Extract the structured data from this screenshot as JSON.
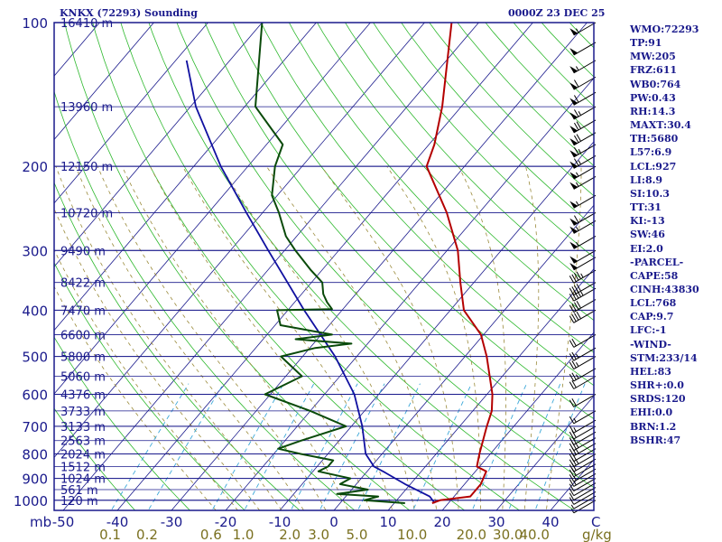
{
  "header": {
    "station_title": "KNKX (72293) Sounding",
    "datetime": "0000Z 23 DEC 25"
  },
  "indices": [
    "WMO:72293",
    "TP:91",
    "MW:205",
    "FRZ:611",
    "WB0:764",
    "PW:0.43",
    "RH:14.3",
    "MAXT:30.4",
    "TH:5680",
    "L57:6.9",
    "LCL:927",
    "LI:8.9",
    "SI:10.3",
    "TT:31",
    "KI:-13",
    "SW:46",
    "EI:2.0",
    "-PARCEL-",
    "CAPE:58",
    "CINH:43830",
    "LCL:768",
    "CAP:9.7",
    "LFC:-1",
    "-WIND-",
    "STM:233/14",
    "HEL:83",
    "SHR+:0.0",
    "SRDS:120",
    "EHI:0.0",
    "BRN:1.2",
    "BSHR:47"
  ],
  "colors": {
    "frame": "#1a1a8c",
    "isobars": "#1a1a8c",
    "isotherms": "#1a1a8c",
    "dry_adiabats": "#2db82d",
    "moist_adiabats": "#9a8a3a",
    "mixing_ratio": "#3aa7d8",
    "temperature": "#b40000",
    "dewpoint": "#0a4a0a",
    "parcel": "#1010a0",
    "mixing_ratio_labels": "#7a7020",
    "barbs": "#000000"
  },
  "chart_data": {
    "type": "skew-t",
    "ylabel": "mb",
    "xlabel": "C",
    "mixing_ratio_unit": "g/kg",
    "pressure_ticks": [
      "100",
      "200",
      "300",
      "400",
      "500",
      "600",
      "700",
      "800",
      "900",
      "1000"
    ],
    "temperature_ticks": [
      "-50",
      "-40",
      "-30",
      "-20",
      "-10",
      "0",
      "10",
      "20",
      "30",
      "40"
    ],
    "mixing_ratio_labels": [
      "0.1",
      "0.2",
      "0.6",
      "1.0",
      "2.0",
      "3.0",
      "5.0",
      "10.0",
      "20.0",
      "30.0",
      "40.0"
    ],
    "height_labels": [
      {
        "p": 100,
        "h": "16410 m"
      },
      {
        "p": 150,
        "h": "13960 m"
      },
      {
        "p": 200,
        "h": "12150 m"
      },
      {
        "p": 250,
        "h": "10720 m"
      },
      {
        "p": 300,
        "h": "9490 m"
      },
      {
        "p": 350,
        "h": "8422 m"
      },
      {
        "p": 400,
        "h": "7470 m"
      },
      {
        "p": 450,
        "h": "6600 m"
      },
      {
        "p": 500,
        "h": "5800 m"
      },
      {
        "p": 550,
        "h": "5060 m"
      },
      {
        "p": 600,
        "h": "4376 m"
      },
      {
        "p": 650,
        "h": "3733 m"
      },
      {
        "p": 700,
        "h": "3133 m"
      },
      {
        "p": 750,
        "h": "2563 m"
      },
      {
        "p": 800,
        "h": "2024 m"
      },
      {
        "p": 850,
        "h": "1512 m"
      },
      {
        "p": 900,
        "h": "1024 m"
      },
      {
        "p": 950,
        "h": "561 m"
      },
      {
        "p": 1000,
        "h": "120 m"
      }
    ],
    "temperature": [
      [
        1014,
        17
      ],
      [
        1000,
        18
      ],
      [
        982,
        23
      ],
      [
        925,
        23
      ],
      [
        870,
        22
      ],
      [
        850,
        19.5
      ],
      [
        800,
        18
      ],
      [
        700,
        15
      ],
      [
        650,
        13.5
      ],
      [
        600,
        11
      ],
      [
        500,
        4
      ],
      [
        450,
        -0.5
      ],
      [
        400,
        -7.5
      ],
      [
        350,
        -12.5
      ],
      [
        300,
        -18
      ],
      [
        250,
        -26
      ],
      [
        200,
        -37
      ],
      [
        180,
        -39
      ],
      [
        150,
        -43.5
      ],
      [
        100,
        -55
      ]
    ],
    "dewpoint": [
      [
        1014,
        12
      ],
      [
        1000,
        4
      ],
      [
        982,
        6
      ],
      [
        970,
        -2
      ],
      [
        950,
        3
      ],
      [
        925,
        -3
      ],
      [
        900,
        -2
      ],
      [
        870,
        -9
      ],
      [
        850,
        -8
      ],
      [
        825,
        -8
      ],
      [
        800,
        -15
      ],
      [
        780,
        -20
      ],
      [
        750,
        -17
      ],
      [
        700,
        -11
      ],
      [
        650,
        -20
      ],
      [
        600,
        -31
      ],
      [
        550,
        -27
      ],
      [
        500,
        -34
      ],
      [
        480,
        -29
      ],
      [
        470,
        -23
      ],
      [
        460,
        -34
      ],
      [
        450,
        -28
      ],
      [
        430,
        -39
      ],
      [
        400,
        -42
      ],
      [
        398,
        -32
      ],
      [
        385,
        -34
      ],
      [
        370,
        -36
      ],
      [
        350,
        -38
      ],
      [
        330,
        -42
      ],
      [
        300,
        -48
      ],
      [
        280,
        -52
      ],
      [
        250,
        -57
      ],
      [
        230,
        -61
      ],
      [
        200,
        -65
      ],
      [
        180,
        -67
      ],
      [
        150,
        -78
      ],
      [
        100,
        -90
      ]
    ],
    "parcel": [
      [
        1014,
        17.5
      ],
      [
        982,
        15.5
      ],
      [
        925,
        9
      ],
      [
        875,
        3.5
      ],
      [
        850,
        0.5
      ],
      [
        800,
        -3
      ],
      [
        700,
        -8
      ],
      [
        600,
        -14.5
      ],
      [
        500,
        -24
      ],
      [
        400,
        -37
      ],
      [
        300,
        -53
      ],
      [
        250,
        -63
      ],
      [
        200,
        -75
      ],
      [
        150,
        -89
      ],
      [
        120,
        -98
      ]
    ],
    "winds": [
      {
        "p": 1000,
        "spd": 5
      },
      {
        "p": 980,
        "spd": 5
      },
      {
        "p": 960,
        "spd": 10
      },
      {
        "p": 940,
        "spd": 10
      },
      {
        "p": 920,
        "spd": 10
      },
      {
        "p": 900,
        "spd": 10
      },
      {
        "p": 880,
        "spd": 15
      },
      {
        "p": 860,
        "spd": 15
      },
      {
        "p": 840,
        "spd": 20
      },
      {
        "p": 820,
        "spd": 20
      },
      {
        "p": 800,
        "spd": 25
      },
      {
        "p": 780,
        "spd": 20
      },
      {
        "p": 760,
        "spd": 25
      },
      {
        "p": 740,
        "spd": 25
      },
      {
        "p": 720,
        "spd": 20
      },
      {
        "p": 700,
        "spd": 20
      },
      {
        "p": 680,
        "spd": 15
      },
      {
        "p": 650,
        "spd": 15
      },
      {
        "p": 600,
        "spd": 20
      },
      {
        "p": 550,
        "spd": 20
      },
      {
        "p": 530,
        "spd": 25
      },
      {
        "p": 500,
        "spd": 25
      },
      {
        "p": 480,
        "spd": 25
      },
      {
        "p": 450,
        "spd": 20
      },
      {
        "p": 400,
        "spd": 40
      },
      {
        "p": 380,
        "spd": 40
      },
      {
        "p": 360,
        "spd": 45
      },
      {
        "p": 350,
        "spd": 40
      },
      {
        "p": 330,
        "spd": 45
      },
      {
        "p": 310,
        "spd": 50
      },
      {
        "p": 300,
        "spd": 50
      },
      {
        "p": 280,
        "spd": 55
      },
      {
        "p": 260,
        "spd": 55
      },
      {
        "p": 250,
        "spd": 60
      },
      {
        "p": 230,
        "spd": 55
      },
      {
        "p": 210,
        "spd": 55
      },
      {
        "p": 200,
        "spd": 55
      },
      {
        "p": 190,
        "spd": 65
      },
      {
        "p": 180,
        "spd": 65
      },
      {
        "p": 170,
        "spd": 70
      },
      {
        "p": 160,
        "spd": 70
      },
      {
        "p": 150,
        "spd": 65
      },
      {
        "p": 140,
        "spd": 60
      },
      {
        "p": 130,
        "spd": 60
      },
      {
        "p": 120,
        "spd": 55
      },
      {
        "p": 110,
        "spd": 50
      },
      {
        "p": 100,
        "spd": 55
      }
    ]
  }
}
